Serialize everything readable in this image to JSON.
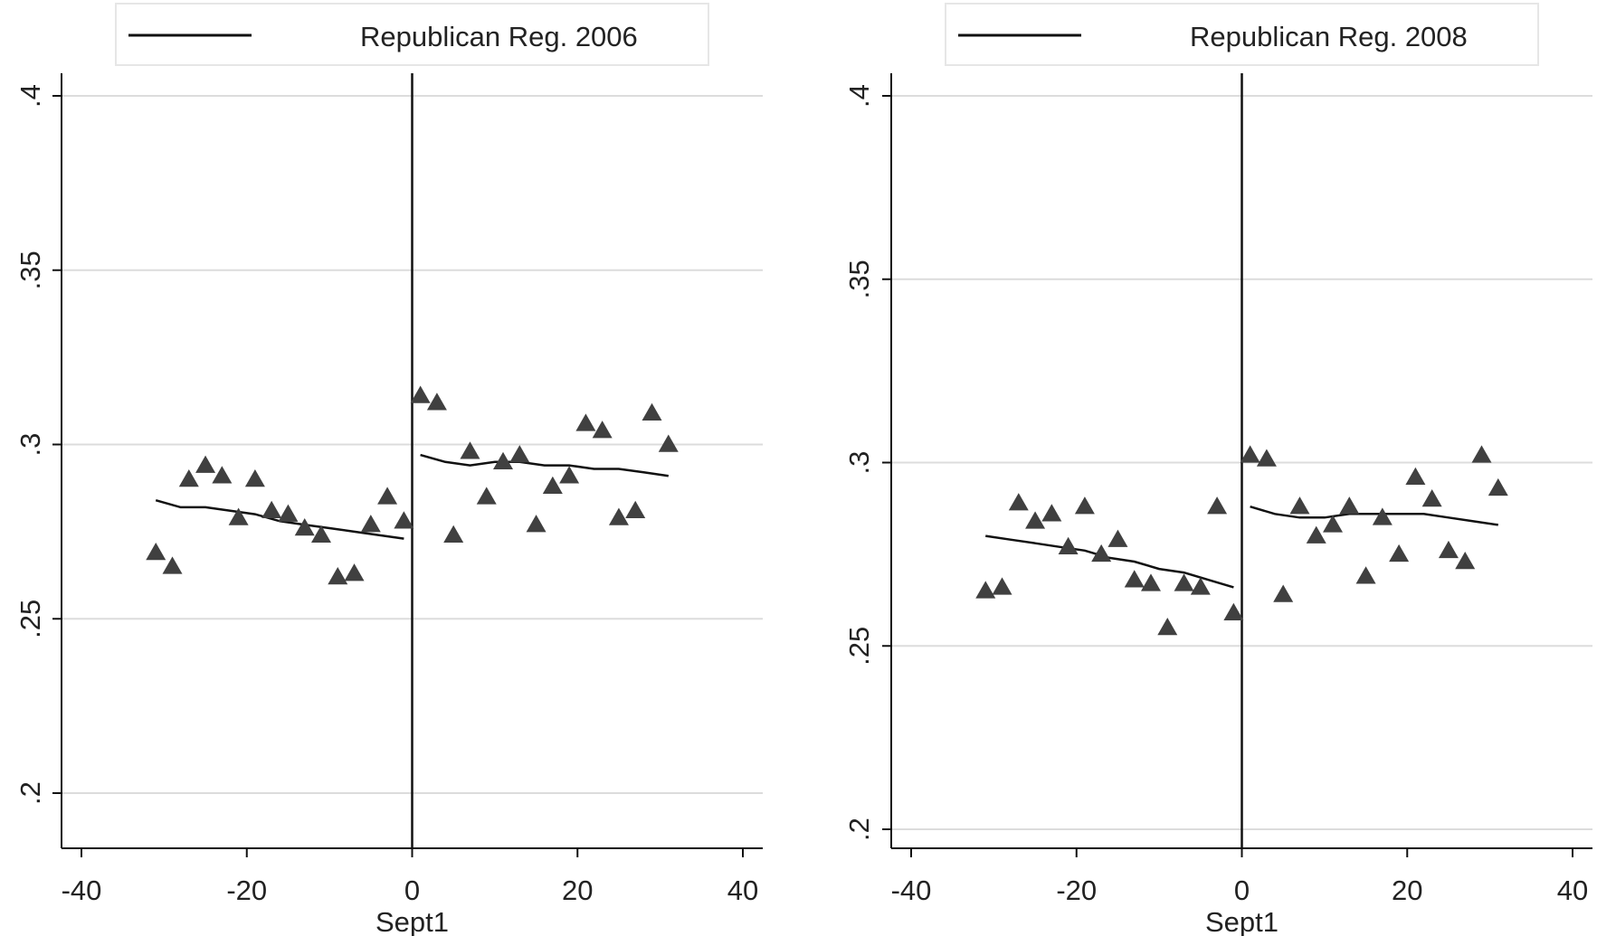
{
  "chart_data": [
    {
      "type": "scatter",
      "legend": "Republican Reg. 2006",
      "xlabel": "Sept1",
      "ylabel": "",
      "xlim": [
        -40,
        40
      ],
      "ylim": [
        0.2,
        0.4
      ],
      "xticks": [
        "-40",
        "-20",
        "0",
        "20",
        "40"
      ],
      "xtick_values": [
        -40,
        -20,
        0,
        20,
        40
      ],
      "yticks": [
        ".2",
        ".25",
        ".3",
        ".35",
        ".4"
      ],
      "ytick_values": [
        0.2,
        0.25,
        0.3,
        0.35,
        0.4
      ],
      "cutoff": 0,
      "grid": true,
      "legend_position": "top",
      "points": {
        "x": [
          -31,
          -29,
          -27,
          -25,
          -23,
          -21,
          -19,
          -17,
          -15,
          -13,
          -11,
          -9,
          -7,
          -5,
          -3,
          -1,
          1,
          3,
          5,
          7,
          9,
          11,
          13,
          15,
          17,
          19,
          21,
          23,
          25,
          27,
          29,
          31
        ],
        "y": [
          0.269,
          0.265,
          0.29,
          0.294,
          0.291,
          0.279,
          0.29,
          0.281,
          0.28,
          0.276,
          0.274,
          0.262,
          0.263,
          0.277,
          0.285,
          0.278,
          0.314,
          0.312,
          0.274,
          0.298,
          0.285,
          0.295,
          0.297,
          0.277,
          0.288,
          0.291,
          0.306,
          0.304,
          0.279,
          0.281,
          0.309,
          0.3
        ]
      },
      "fit_left": {
        "x": [
          -31,
          -28,
          -25,
          -22,
          -19,
          -16,
          -13,
          -10,
          -7,
          -4,
          -1
        ],
        "y": [
          0.284,
          0.282,
          0.282,
          0.281,
          0.28,
          0.278,
          0.277,
          0.276,
          0.275,
          0.274,
          0.273
        ]
      },
      "fit_right": {
        "x": [
          1,
          4,
          7,
          10,
          13,
          16,
          19,
          22,
          25,
          28,
          31
        ],
        "y": [
          0.297,
          0.295,
          0.294,
          0.295,
          0.295,
          0.294,
          0.294,
          0.293,
          0.293,
          0.292,
          0.291
        ]
      }
    },
    {
      "type": "scatter",
      "legend": "Republican Reg. 2008",
      "xlabel": "Sept1",
      "ylabel": "",
      "xlim": [
        -40,
        40
      ],
      "ylim": [
        0.2,
        0.4
      ],
      "xticks": [
        "-40",
        "-20",
        "0",
        "20",
        "40"
      ],
      "xtick_values": [
        -40,
        -20,
        0,
        20,
        40
      ],
      "yticks": [
        ".2",
        ".25",
        ".3",
        ".35",
        ".4"
      ],
      "ytick_values": [
        0.2,
        0.25,
        0.3,
        0.35,
        0.4
      ],
      "cutoff": 0,
      "grid": true,
      "legend_position": "top",
      "points": {
        "x": [
          -31,
          -29,
          -27,
          -25,
          -23,
          -21,
          -19,
          -17,
          -15,
          -13,
          -11,
          -9,
          -7,
          -5,
          -3,
          -1,
          1,
          3,
          5,
          7,
          9,
          11,
          13,
          15,
          17,
          19,
          21,
          23,
          25,
          27,
          29,
          31
        ],
        "y": [
          0.265,
          0.266,
          0.289,
          0.284,
          0.286,
          0.277,
          0.288,
          0.275,
          0.279,
          0.268,
          0.267,
          0.255,
          0.267,
          0.266,
          0.288,
          0.259,
          0.302,
          0.301,
          0.264,
          0.288,
          0.28,
          0.283,
          0.288,
          0.269,
          0.285,
          0.275,
          0.296,
          0.29,
          0.276,
          0.273,
          0.302,
          0.293
        ]
      },
      "fit_left": {
        "x": [
          -31,
          -28,
          -25,
          -22,
          -19,
          -16,
          -13,
          -10,
          -7,
          -4,
          -1
        ],
        "y": [
          0.28,
          0.279,
          0.278,
          0.277,
          0.276,
          0.274,
          0.273,
          0.271,
          0.27,
          0.268,
          0.266
        ]
      },
      "fit_right": {
        "x": [
          1,
          4,
          7,
          10,
          13,
          16,
          19,
          22,
          25,
          28,
          31
        ],
        "y": [
          0.288,
          0.286,
          0.285,
          0.285,
          0.286,
          0.286,
          0.286,
          0.286,
          0.285,
          0.284,
          0.283
        ]
      }
    }
  ]
}
